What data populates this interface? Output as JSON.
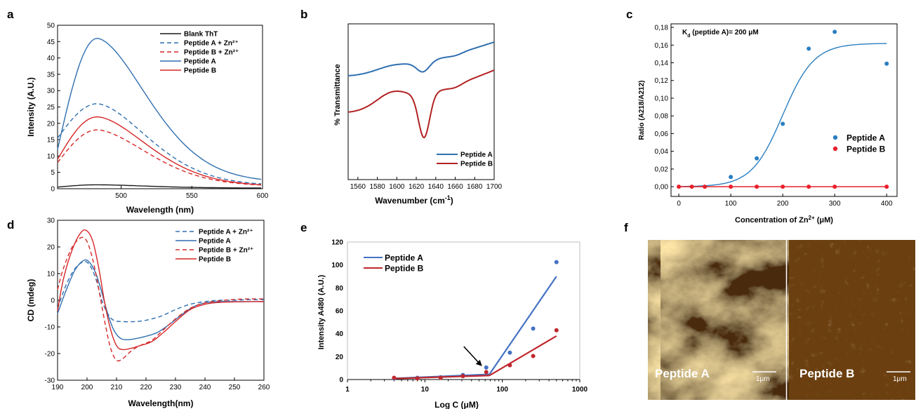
{
  "colors": {
    "blue": "#2f6fb0",
    "red": "#d62728",
    "black": "#1a1a1a",
    "blue_pt": "#2a7fc1",
    "red_pt": "#e8202a"
  },
  "panels": {
    "a": {
      "letter": "a",
      "chart_data": {
        "type": "line",
        "xlabel": "Wavelength (nm)",
        "ylabel": "Intensity (A.U.)",
        "xlim": [
          455,
          600
        ],
        "ylim": [
          0,
          50
        ],
        "xticks": [
          500,
          550,
          600
        ],
        "yticks": [
          0,
          5,
          10,
          15,
          20,
          25,
          30,
          35,
          40,
          45,
          50
        ],
        "series": [
          {
            "name": "Blank ThT",
            "color": "#1a1a1a",
            "dash": false,
            "peak": 1.2,
            "start": 0.5,
            "end": 0.2
          },
          {
            "name": "Peptide A + Zn²⁺",
            "color": "#2f6fb0",
            "dash": true,
            "peak": 26,
            "start": 15.5,
            "end": 1.0
          },
          {
            "name": "Peptide B + Zn²⁺",
            "color": "#d62728",
            "dash": true,
            "peak": 18,
            "start": 8.0,
            "end": 0.8
          },
          {
            "name": "Peptide A",
            "color": "#2f6fb0",
            "dash": false,
            "peak": 46,
            "start": 12.0,
            "end": 2.0
          },
          {
            "name": "Peptide B",
            "color": "#d62728",
            "dash": false,
            "peak": 22,
            "start": 9.0,
            "end": 0.8
          }
        ]
      }
    },
    "b": {
      "letter": "b",
      "chart_data": {
        "type": "line",
        "xlabel": "Wavenumber (cm",
        "xlabel_sup": "-1",
        "xlabel_end": ")",
        "ylabel": "% Transmittance",
        "xlim": [
          1550,
          1700
        ],
        "xticks": [
          1560,
          1580,
          1600,
          1620,
          1640,
          1660,
          1680,
          1700
        ],
        "series": [
          {
            "name": "Peptide A",
            "color": "#2f6fb0",
            "minimum_cm": 1627
          },
          {
            "name": "Peptide B",
            "color": "#b22222",
            "minimum_cm": 1628
          }
        ]
      }
    },
    "c": {
      "letter": "c",
      "annotation": "K",
      "annotation_sub": "d",
      "annotation_rest": " (peptide A)= 200 μM",
      "chart_data": {
        "type": "scatter",
        "xlabel": "Concentration of Zn",
        "xlabel_sup": "2+",
        "xlabel_end": " (μM)",
        "ylabel": "Ratio (A218/A212)",
        "xlim": [
          0,
          420
        ],
        "ylim": [
          0,
          0.18
        ],
        "xticks": [
          0,
          100,
          200,
          300,
          400
        ],
        "yticks": [
          0,
          0.02,
          0.04,
          0.06,
          0.08,
          0.1,
          0.12,
          0.14,
          0.16,
          0.18
        ],
        "ytick_labels": [
          "0,00",
          "0,02",
          "0,04",
          "0,06",
          "0,08",
          "0,10",
          "0,12",
          "0,14",
          "0,16",
          "0,18"
        ],
        "series": [
          {
            "name": "Peptide A",
            "color": "#2a7fc1",
            "x": [
              0,
              25,
              50,
              100,
              150,
              200,
              250,
              300,
              400
            ],
            "y": [
              0,
              0,
              0,
              0.011,
              0.032,
              0.071,
              0.156,
              0.175,
              0.139
            ]
          },
          {
            "name": "Peptide B",
            "color": "#e8202a",
            "x": [
              0,
              25,
              50,
              100,
              150,
              200,
              250,
              300,
              400
            ],
            "y": [
              0,
              0,
              0,
              0,
              0,
              0,
              0,
              0,
              0
            ]
          }
        ],
        "fit": {
          "top": 0.162,
          "x50": 200,
          "slope": 30
        }
      }
    },
    "d": {
      "letter": "d",
      "chart_data": {
        "type": "line",
        "xlabel": "Wavelength(nm)",
        "ylabel": "CD (mdeg)",
        "xlim": [
          190,
          260
        ],
        "ylim": [
          -30,
          30
        ],
        "xticks": [
          190,
          200,
          210,
          220,
          230,
          240,
          250,
          260
        ],
        "yticks": [
          -30,
          -20,
          -10,
          0,
          10,
          20,
          30
        ],
        "series": [
          {
            "name": "Peptide A + Zn²⁺",
            "color": "#2f6fb0",
            "dash": true,
            "x": [
              190,
              193,
              196,
              199,
              201,
              203,
              205,
              207,
              209,
              212,
              216,
              220,
              225,
              230,
              235,
              240,
              245,
              250,
              255,
              260
            ],
            "y": [
              -3,
              6,
              12,
              14.5,
              13,
              8,
              0,
              -5,
              -7.5,
              -8,
              -8,
              -7.5,
              -6,
              -3.5,
              -1.5,
              -0.5,
              0,
              0,
              0.2,
              0.2
            ]
          },
          {
            "name": "Peptide A",
            "color": "#2f6fb0",
            "dash": false,
            "x": [
              190,
              193,
              196,
              199,
              201,
              203,
              205,
              207,
              209,
              211,
              213,
              216,
              220,
              224,
              228,
              232,
              236,
              240,
              245,
              250,
              255,
              260
            ],
            "y": [
              -5,
              4,
              11.5,
              15,
              14,
              10,
              3,
              -5,
              -11,
              -14,
              -14.8,
              -14.5,
              -13.5,
              -12,
              -9,
              -5.5,
              -2.5,
              -1,
              -0.5,
              -0.5,
              -0.5,
              -0.5
            ]
          },
          {
            "name": "Peptide B + Zn²⁺",
            "color": "#d62728",
            "dash": true,
            "x": [
              190,
              192,
              195,
              198,
              200,
              202,
              204,
              206,
              208,
              210,
              212,
              215,
              218,
              222,
              226,
              230,
              235,
              240,
              245,
              250,
              255,
              260
            ],
            "y": [
              4,
              12,
              20,
              23.5,
              22,
              15,
              4,
              -8,
              -18,
              -22.5,
              -22,
              -19,
              -17,
              -15,
              -11,
              -7,
              -3,
              -1,
              -0.2,
              0.3,
              0.5,
              0.5
            ]
          },
          {
            "name": "Peptide B",
            "color": "#d62728",
            "dash": false,
            "x": [
              190,
              192,
              195,
              198,
              200,
              202,
              204,
              206,
              208,
              210,
              212,
              215,
              218,
              222,
              226,
              230,
              235,
              240,
              245,
              250,
              255,
              260
            ],
            "y": [
              -4,
              8,
              19,
              25.5,
              26,
              22,
              12,
              -1,
              -11,
              -17,
              -18.5,
              -18,
              -17,
              -15.5,
              -12,
              -8,
              -3.5,
              -1.5,
              -0.8,
              -0.6,
              -0.5,
              -0.5
            ]
          }
        ]
      }
    },
    "e": {
      "letter": "e",
      "chart_data": {
        "type": "scatter",
        "xlabel": "Log C (μM)",
        "ylabel": "Intensity A480 (A.U.)",
        "xscale": "log",
        "xlim": [
          1,
          1000
        ],
        "ylim": [
          0,
          120
        ],
        "xticks": [
          1,
          10,
          100,
          1000
        ],
        "yticks": [
          0,
          20,
          40,
          60,
          80,
          100,
          120
        ],
        "series": [
          {
            "name": "Peptide A",
            "color": "#4472c4",
            "x": [
              4,
              8,
              16,
              31,
              62,
              125,
              250,
              500
            ],
            "y": [
              1,
              1.5,
              2,
              4,
              10.5,
              23.5,
              44.5,
              102.5
            ],
            "fit_low": [
              [
                4,
                1.0
              ],
              [
                68,
                4.5
              ]
            ],
            "fit_high": [
              [
                68,
                4.5
              ],
              [
                500,
                90
              ]
            ]
          },
          {
            "name": "Peptide B",
            "color": "#c0282d",
            "x": [
              4,
              8,
              16,
              31,
              62,
              125,
              250,
              500
            ],
            "y": [
              1.5,
              1,
              1.5,
              3,
              6.5,
              12.5,
              20.5,
              43
            ],
            "fit_low": [
              [
                4,
                0.8
              ],
              [
                68,
                3.5
              ]
            ],
            "fit_high": [
              [
                68,
                3.5
              ],
              [
                500,
                38
              ]
            ]
          }
        ],
        "arrow_target": [
          62,
          8
        ]
      }
    },
    "f": {
      "letter": "f",
      "images": [
        {
          "label": "Peptide A",
          "scale": "1μm"
        },
        {
          "label": "Peptide B",
          "scale": "1μm"
        }
      ]
    }
  }
}
